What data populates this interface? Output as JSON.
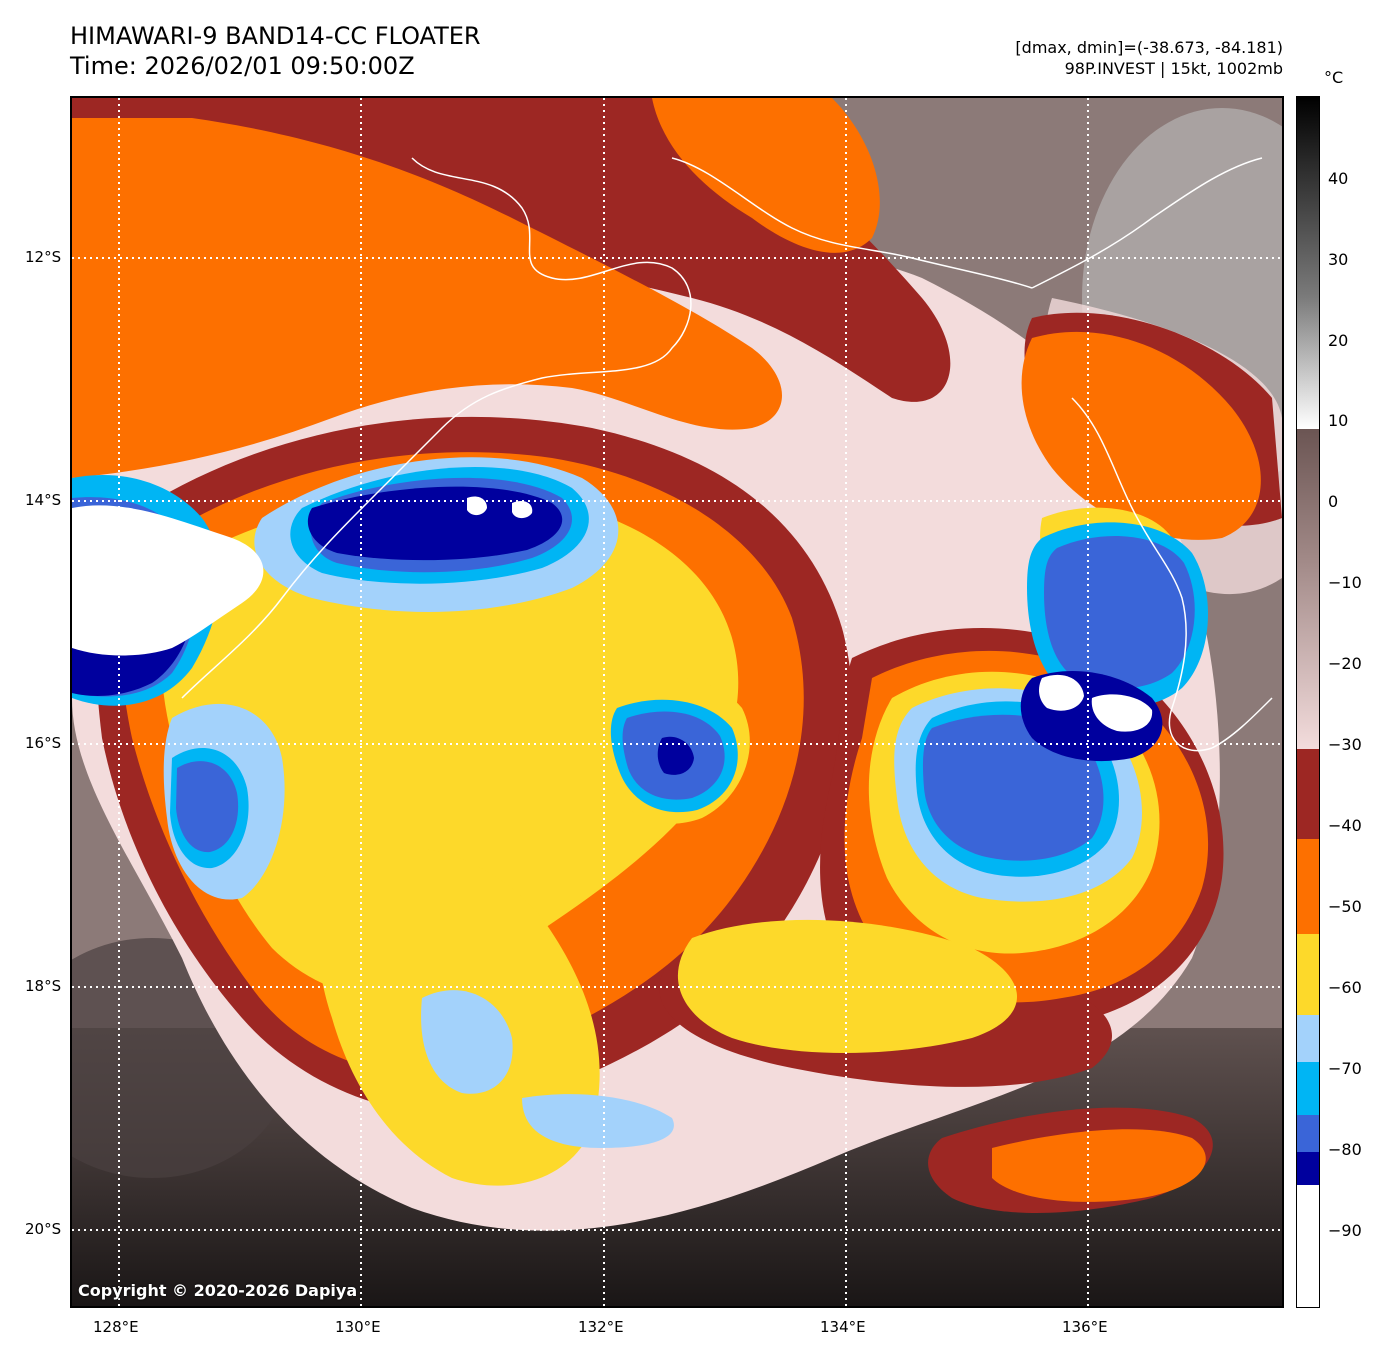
{
  "title": {
    "line1": "HIMAWARI-9 BAND14-CC FLOATER",
    "line2": "Time: 2026/02/01 09:50:00Z"
  },
  "meta": {
    "range": "[dmax, dmin]=(-38.673, -84.181)",
    "storm": "98P.INVEST | 15kt, 1002mb"
  },
  "map": {
    "lat_ticks": [
      "12°S",
      "14°S",
      "16°S",
      "18°S",
      "20°S"
    ],
    "lon_ticks": [
      "128°E",
      "130°E",
      "132°E",
      "134°E",
      "136°E"
    ],
    "copyright": "Copyright © 2020-2026 Dapiya"
  },
  "colorbar": {
    "unit": "°C",
    "ticks": [
      "40",
      "30",
      "20",
      "10",
      "0",
      "−10",
      "−20",
      "−30",
      "−40",
      "−50",
      "−60",
      "−70",
      "−80",
      "−90"
    ],
    "colors": {
      "warm_black": "#000000",
      "warm_white": "#ffffff",
      "brown_top": "#6b5553",
      "pink": "#f3dcdc",
      "red": "#9d2723",
      "orange": "#fd7000",
      "yellow": "#fdd92a",
      "light_blue": "#a3d2fb",
      "cyan": "#00b5f4",
      "blue": "#3a65d8",
      "navy": "#00009e",
      "coldest": "#ffffff"
    }
  }
}
